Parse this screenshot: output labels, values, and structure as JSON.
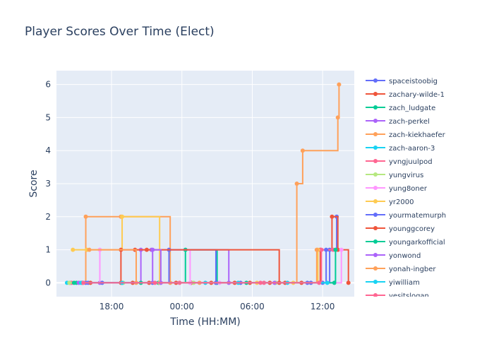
{
  "chart_data": {
    "type": "line",
    "line_shape": "step-after",
    "title": "Player Scores Over Time (Elect)",
    "xlabel": "Time (HH:MM)",
    "ylabel": "Score",
    "x_tick_labels": [
      "18:00",
      "00:00",
      "06:00",
      "12:00"
    ],
    "x_tick_values": [
      18,
      24,
      30,
      36
    ],
    "xlim": [
      13.3,
      38.7
    ],
    "y_tick_labels": [
      "0",
      "1",
      "2",
      "3",
      "4",
      "5",
      "6"
    ],
    "ylim": [
      -0.42,
      6.42
    ],
    "grid": true,
    "legend_position": "right",
    "series": [
      {
        "name": "spaceistoobig",
        "color": "#636efa",
        "points": [
          [
            16,
            0
          ],
          [
            21.5,
            0
          ],
          [
            29,
            0
          ],
          [
            35,
            0
          ],
          [
            36,
            0
          ],
          [
            36.6,
            1
          ],
          [
            37.2,
            2
          ]
        ]
      },
      {
        "name": "zachary-wilde-1",
        "color": "#EF553B",
        "points": [
          [
            15.5,
            0
          ],
          [
            18.8,
            0
          ],
          [
            19.8,
            0
          ],
          [
            21.2,
            0
          ],
          [
            23.5,
            0
          ],
          [
            24.8,
            0
          ],
          [
            26.5,
            0
          ],
          [
            28.5,
            0
          ],
          [
            29.8,
            0
          ],
          [
            31.5,
            0
          ],
          [
            32.8,
            0
          ],
          [
            34.2,
            0
          ],
          [
            35.8,
            1
          ],
          [
            36.8,
            2
          ],
          [
            37.3,
            1
          ],
          [
            38.2,
            0
          ]
        ]
      },
      {
        "name": "zach_ludgate",
        "color": "#00cc96",
        "points": [
          [
            15,
            0
          ],
          [
            22,
            0
          ],
          [
            24.3,
            1
          ],
          [
            27,
            0
          ],
          [
            37,
            0
          ]
        ]
      },
      {
        "name": "zach-perkel",
        "color": "#ab63fa",
        "points": [
          [
            14.5,
            0
          ],
          [
            17,
            0
          ],
          [
            20.5,
            1
          ],
          [
            21.4,
            1
          ],
          [
            28,
            0
          ]
        ]
      },
      {
        "name": "zach-kiekhaefer",
        "color": "#FFA15A",
        "points": [
          [
            14.4,
            0
          ],
          [
            15.8,
            2
          ],
          [
            18.8,
            2
          ],
          [
            23,
            0
          ],
          [
            33.8,
            3
          ],
          [
            34.3,
            4
          ],
          [
            37.3,
            5
          ],
          [
            37.4,
            6
          ]
        ]
      },
      {
        "name": "zach-aaron-3",
        "color": "#19d3f3",
        "points": [
          [
            14.2,
            0
          ],
          [
            18.9,
            0
          ],
          [
            26,
            0
          ],
          [
            33,
            0
          ]
        ]
      },
      {
        "name": "yvngjuulpod",
        "color": "#FF6692",
        "points": [
          [
            14.6,
            0
          ],
          [
            23.8,
            0
          ],
          [
            31,
            0
          ],
          [
            35.9,
            1
          ],
          [
            36.9,
            1
          ]
        ]
      },
      {
        "name": "yungvirus",
        "color": "#B6E880",
        "points": [
          [
            14.4,
            0
          ],
          [
            19,
            0
          ],
          [
            25,
            0
          ],
          [
            32,
            0
          ]
        ]
      },
      {
        "name": "yung8oner",
        "color": "#FF97FF",
        "points": [
          [
            15.3,
            0
          ],
          [
            17,
            1
          ],
          [
            24.7,
            0
          ],
          [
            27.2,
            0
          ],
          [
            37.6,
            1
          ]
        ]
      },
      {
        "name": "yr2000",
        "color": "#FECB52",
        "points": [
          [
            14.7,
            1
          ],
          [
            15.9,
            1
          ],
          [
            18.9,
            2
          ],
          [
            22.1,
            0
          ],
          [
            30.4,
            0
          ],
          [
            33.5,
            0
          ],
          [
            35.6,
            1
          ]
        ]
      },
      {
        "name": "yourmatemurph",
        "color": "#636efa",
        "points": [
          [
            15.8,
            0
          ],
          [
            17.2,
            0
          ],
          [
            22.9,
            1
          ],
          [
            26.9,
            0
          ],
          [
            34.7,
            0
          ],
          [
            36.3,
            1
          ]
        ]
      },
      {
        "name": "younggcorey",
        "color": "#EF553B",
        "points": [
          [
            16.2,
            0
          ],
          [
            18.8,
            1
          ],
          [
            20,
            1
          ],
          [
            21,
            1
          ],
          [
            32.3,
            0
          ]
        ]
      },
      {
        "name": "youngarkofficial",
        "color": "#00cc96",
        "points": [
          [
            14.8,
            0
          ],
          [
            20.5,
            0
          ],
          [
            29.5,
            0
          ],
          [
            37.1,
            1
          ]
        ]
      },
      {
        "name": "yonwond",
        "color": "#ab63fa",
        "points": [
          [
            15.2,
            0
          ],
          [
            21.5,
            1
          ],
          [
            22.2,
            0
          ],
          [
            31.9,
            0
          ]
        ]
      },
      {
        "name": "yonah-ingber",
        "color": "#FFA15A",
        "points": [
          [
            16.1,
            1
          ],
          [
            20.1,
            0
          ],
          [
            25.5,
            0
          ],
          [
            35.5,
            1
          ]
        ]
      },
      {
        "name": "yiwilliam",
        "color": "#19d3f3",
        "points": [
          [
            15.4,
            0
          ],
          [
            18.9,
            0
          ],
          [
            28.8,
            0
          ],
          [
            36.4,
            0
          ]
        ]
      },
      {
        "name": "yesitslogan",
        "color": "#FF6692",
        "points": [
          [
            15.6,
            0
          ],
          [
            21.7,
            0
          ],
          [
            30.7,
            0
          ],
          [
            35.7,
            0
          ]
        ]
      }
    ]
  }
}
